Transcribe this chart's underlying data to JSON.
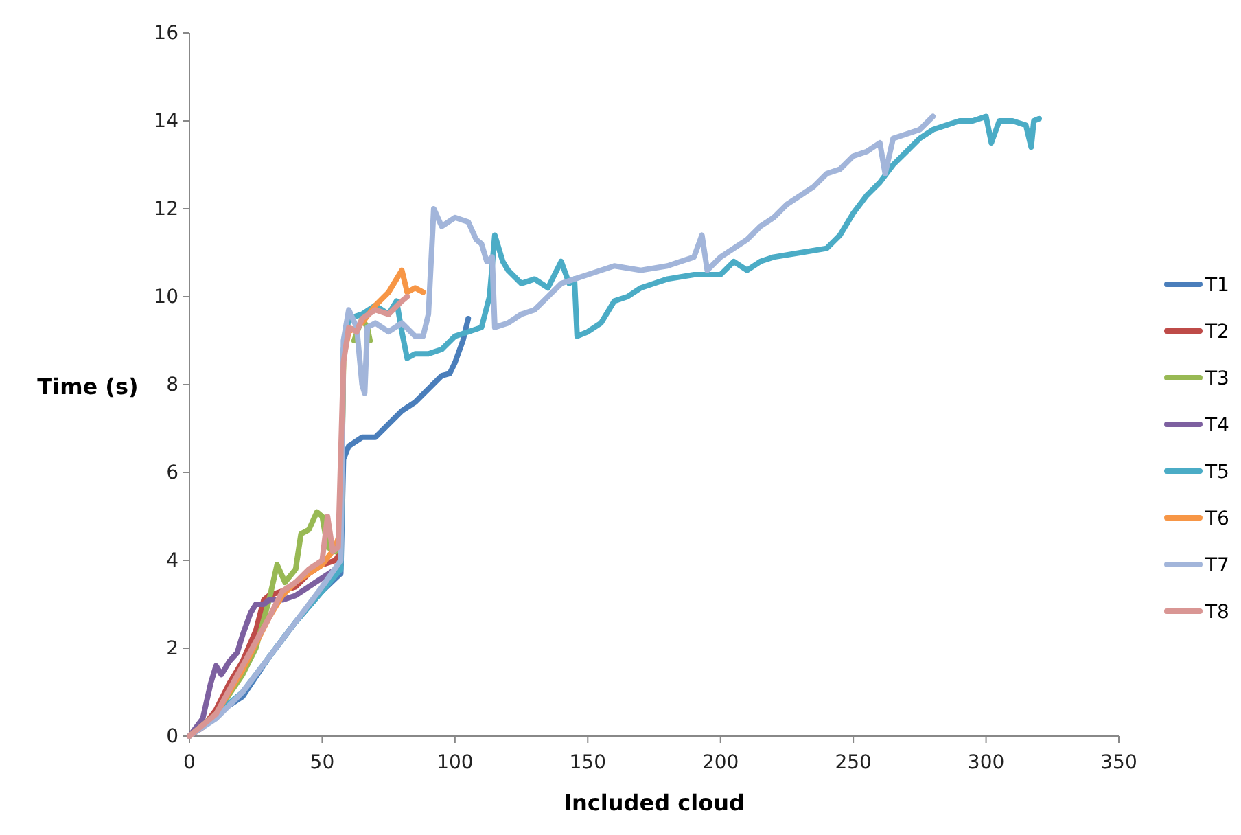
{
  "chart_data": {
    "type": "line",
    "xlabel": "Included cloud",
    "ylabel": "Time (s)",
    "xlim": [
      0,
      350
    ],
    "xticks": [
      0,
      50,
      100,
      150,
      200,
      250,
      300,
      350
    ],
    "ylim": [
      0,
      16
    ],
    "yticks": [
      0,
      2,
      4,
      6,
      8,
      10,
      12,
      14,
      16
    ],
    "grid": false,
    "legend": "right",
    "marker": "none",
    "line_style": "solid",
    "series": [
      {
        "name": "T1",
        "color": "#4a7ebb",
        "x": [
          0,
          10,
          20,
          30,
          40,
          50,
          57,
          58,
          60,
          65,
          70,
          75,
          80,
          85,
          90,
          95,
          98,
          100,
          103,
          105
        ],
        "values": [
          0,
          0.5,
          0.9,
          1.8,
          2.6,
          3.3,
          3.7,
          6.3,
          6.6,
          6.8,
          6.8,
          7.1,
          7.4,
          7.6,
          7.9,
          8.2,
          8.25,
          8.5,
          9.0,
          9.5
        ]
      },
      {
        "name": "T2",
        "color": "#be4b48",
        "x": [
          0,
          5,
          10,
          15,
          20,
          25,
          28,
          30,
          35,
          40,
          45,
          50,
          55,
          57
        ],
        "values": [
          0,
          0.2,
          0.6,
          1.2,
          1.7,
          2.4,
          3.1,
          3.2,
          3.3,
          3.4,
          3.7,
          3.9,
          4.0,
          4.2
        ]
      },
      {
        "name": "T3",
        "color": "#98b954",
        "x": [
          0,
          10,
          20,
          25,
          30,
          33,
          36,
          40,
          42,
          45,
          48,
          50,
          52,
          55,
          57,
          58,
          60,
          62,
          65,
          67,
          68
        ],
        "values": [
          0,
          0.5,
          1.4,
          2.0,
          3.1,
          3.9,
          3.5,
          3.8,
          4.6,
          4.7,
          5.1,
          5.0,
          4.3,
          4.2,
          4.5,
          8.5,
          null,
          9.0,
          9.5,
          9.3,
          9.0
        ]
      },
      {
        "name": "T4",
        "color": "#7d60a0",
        "x": [
          0,
          5,
          8,
          10,
          12,
          15,
          18,
          20,
          23,
          25,
          28,
          30,
          35,
          40,
          45,
          50,
          55,
          57
        ],
        "values": [
          0,
          0.4,
          1.2,
          1.6,
          1.4,
          1.7,
          1.9,
          2.3,
          2.8,
          3.0,
          3.0,
          3.1,
          3.1,
          3.2,
          3.4,
          3.6,
          3.8,
          3.9
        ]
      },
      {
        "name": "T5",
        "color": "#4bacc6",
        "x": [
          0,
          10,
          20,
          30,
          40,
          50,
          57,
          58,
          60,
          65,
          70,
          75,
          78,
          80,
          82,
          85,
          90,
          95,
          100,
          105,
          110,
          113,
          115,
          118,
          120,
          125,
          130,
          135,
          140,
          143,
          145,
          146,
          150,
          155,
          160,
          165,
          170,
          175,
          180,
          190,
          200,
          205,
          210,
          215,
          220,
          230,
          240,
          245,
          250,
          255,
          260,
          265,
          270,
          275,
          280,
          285,
          290,
          295,
          300,
          302,
          305,
          310,
          315,
          317,
          318,
          320
        ],
        "values": [
          0,
          0.5,
          1.0,
          1.8,
          2.6,
          3.3,
          3.8,
          8.8,
          9.5,
          9.6,
          9.8,
          9.6,
          9.9,
          9.2,
          8.6,
          8.7,
          8.7,
          8.8,
          9.1,
          9.2,
          9.3,
          10.0,
          11.4,
          10.8,
          10.6,
          10.3,
          10.4,
          10.2,
          10.8,
          10.3,
          10.4,
          9.1,
          9.2,
          9.4,
          9.9,
          10.0,
          10.2,
          10.3,
          10.4,
          10.5,
          10.5,
          10.8,
          10.6,
          10.8,
          10.9,
          11.0,
          11.1,
          11.4,
          11.9,
          12.3,
          12.6,
          13.0,
          13.3,
          13.6,
          13.8,
          13.9,
          14.0,
          14.0,
          14.1,
          13.5,
          14.0,
          14.0,
          13.9,
          13.4,
          14.0,
          14.05
        ]
      },
      {
        "name": "T6",
        "color": "#f79646",
        "x": [
          0,
          10,
          20,
          30,
          35,
          40,
          45,
          50,
          55,
          57,
          58,
          60,
          65,
          70,
          75,
          78,
          80,
          82,
          85,
          88
        ],
        "values": [
          0,
          0.5,
          1.5,
          2.7,
          3.2,
          3.5,
          3.7,
          3.9,
          4.3,
          4.7,
          8.6,
          9.2,
          9.4,
          9.8,
          10.1,
          10.4,
          10.6,
          10.1,
          10.2,
          10.1
        ]
      },
      {
        "name": "T7",
        "color": "#a2b5da",
        "x": [
          0,
          10,
          20,
          30,
          40,
          50,
          57,
          58,
          60,
          63,
          65,
          66,
          67,
          70,
          75,
          80,
          85,
          88,
          90,
          92,
          95,
          100,
          105,
          108,
          110,
          112,
          114,
          115,
          120,
          125,
          130,
          135,
          140,
          145,
          150,
          160,
          170,
          180,
          190,
          193,
          195,
          200,
          205,
          210,
          215,
          220,
          225,
          230,
          235,
          240,
          245,
          250,
          255,
          260,
          262,
          265,
          270,
          275,
          280
        ],
        "values": [
          0,
          0.4,
          1.0,
          1.8,
          2.6,
          3.4,
          4.0,
          9.0,
          9.7,
          9.3,
          8.0,
          7.8,
          9.3,
          9.4,
          9.2,
          9.4,
          9.1,
          9.1,
          9.6,
          12.0,
          11.6,
          11.8,
          11.7,
          11.3,
          11.2,
          10.8,
          10.9,
          9.3,
          9.4,
          9.6,
          9.7,
          10.0,
          10.3,
          10.4,
          10.5,
          10.7,
          10.6,
          10.7,
          10.9,
          11.4,
          10.6,
          10.9,
          11.1,
          11.3,
          11.6,
          11.8,
          12.1,
          12.3,
          12.5,
          12.8,
          12.9,
          13.2,
          13.3,
          13.5,
          12.8,
          13.6,
          13.7,
          13.8,
          14.1
        ]
      },
      {
        "name": "T8",
        "color": "#d99694",
        "x": [
          0,
          10,
          20,
          30,
          35,
          40,
          45,
          50,
          52,
          54,
          56,
          58,
          60,
          63,
          65,
          70,
          75,
          80,
          82
        ],
        "values": [
          0,
          0.5,
          1.6,
          2.7,
          3.3,
          3.5,
          3.8,
          4.0,
          5.0,
          4.2,
          4.3,
          8.5,
          9.3,
          9.2,
          9.5,
          9.7,
          9.6,
          9.9,
          10.0
        ]
      }
    ]
  }
}
